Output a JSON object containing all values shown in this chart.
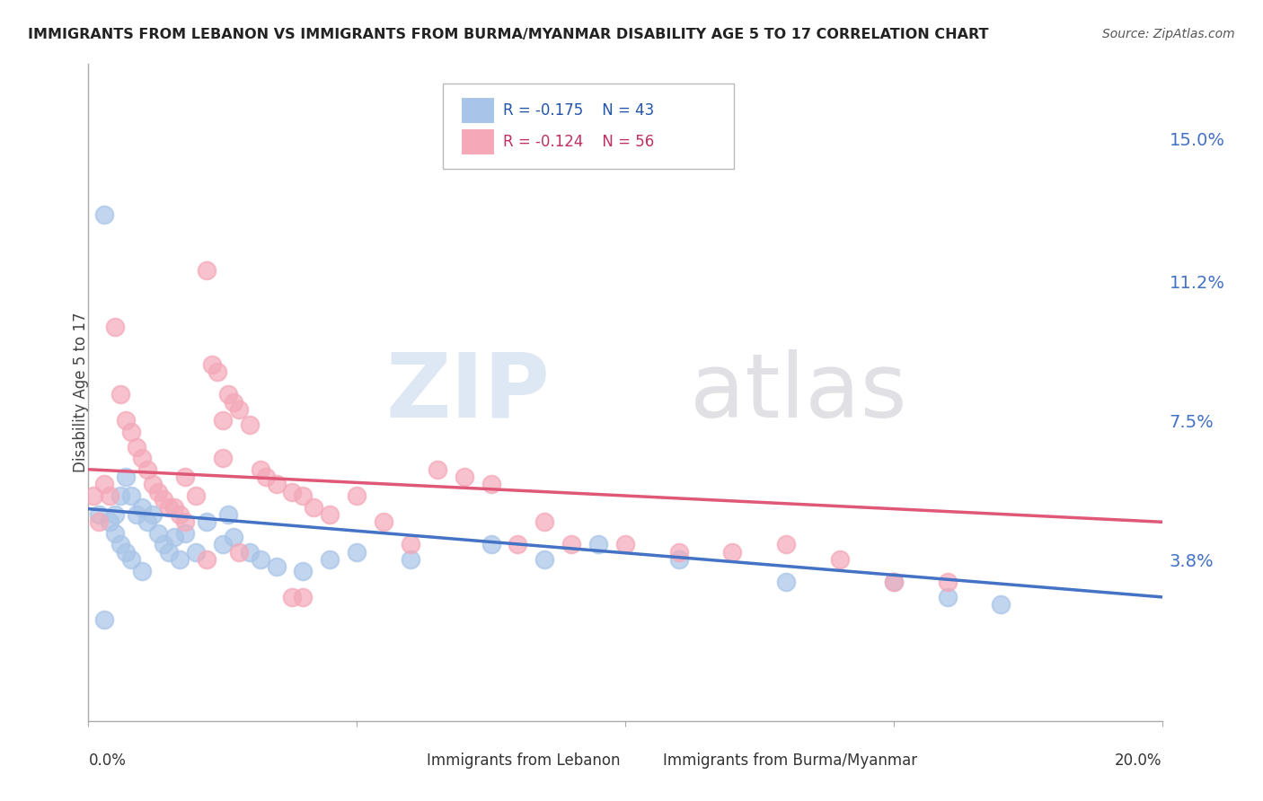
{
  "title": "IMMIGRANTS FROM LEBANON VS IMMIGRANTS FROM BURMA/MYANMAR DISABILITY AGE 5 TO 17 CORRELATION CHART",
  "source": "Source: ZipAtlas.com",
  "ylabel": "Disability Age 5 to 17",
  "ytick_labels": [
    "3.8%",
    "7.5%",
    "11.2%",
    "15.0%"
  ],
  "ytick_values": [
    0.038,
    0.075,
    0.112,
    0.15
  ],
  "xlim": [
    0.0,
    0.2
  ],
  "ylim": [
    -0.005,
    0.17
  ],
  "color_lebanon": "#a8c4e8",
  "color_burma": "#f4a8b8",
  "line_color_lebanon": "#4472c4",
  "line_color_burma": "#e05878",
  "lebanon_x": [
    0.002,
    0.003,
    0.004,
    0.005,
    0.005,
    0.006,
    0.006,
    0.007,
    0.007,
    0.008,
    0.008,
    0.009,
    0.01,
    0.01,
    0.011,
    0.012,
    0.013,
    0.014,
    0.015,
    0.016,
    0.017,
    0.018,
    0.02,
    0.022,
    0.025,
    0.026,
    0.027,
    0.03,
    0.032,
    0.035,
    0.04,
    0.045,
    0.05,
    0.06,
    0.075,
    0.085,
    0.095,
    0.11,
    0.13,
    0.15,
    0.16,
    0.17,
    0.003
  ],
  "lebanon_y": [
    0.05,
    0.13,
    0.048,
    0.05,
    0.045,
    0.055,
    0.042,
    0.06,
    0.04,
    0.055,
    0.038,
    0.05,
    0.052,
    0.035,
    0.048,
    0.05,
    0.045,
    0.042,
    0.04,
    0.044,
    0.038,
    0.045,
    0.04,
    0.048,
    0.042,
    0.05,
    0.044,
    0.04,
    0.038,
    0.036,
    0.035,
    0.038,
    0.04,
    0.038,
    0.042,
    0.038,
    0.042,
    0.038,
    0.032,
    0.032,
    0.028,
    0.026,
    0.022
  ],
  "burma_x": [
    0.001,
    0.002,
    0.003,
    0.004,
    0.005,
    0.006,
    0.007,
    0.008,
    0.009,
    0.01,
    0.011,
    0.012,
    0.013,
    0.014,
    0.015,
    0.016,
    0.017,
    0.018,
    0.018,
    0.02,
    0.022,
    0.023,
    0.024,
    0.025,
    0.025,
    0.026,
    0.027,
    0.028,
    0.03,
    0.032,
    0.033,
    0.035,
    0.038,
    0.04,
    0.042,
    0.045,
    0.05,
    0.055,
    0.06,
    0.065,
    0.07,
    0.075,
    0.08,
    0.085,
    0.09,
    0.1,
    0.11,
    0.12,
    0.13,
    0.14,
    0.15,
    0.16,
    0.022,
    0.028,
    0.038,
    0.04
  ],
  "burma_y": [
    0.055,
    0.048,
    0.058,
    0.055,
    0.1,
    0.082,
    0.075,
    0.072,
    0.068,
    0.065,
    0.062,
    0.058,
    0.056,
    0.054,
    0.052,
    0.052,
    0.05,
    0.06,
    0.048,
    0.055,
    0.115,
    0.09,
    0.088,
    0.075,
    0.065,
    0.082,
    0.08,
    0.078,
    0.074,
    0.062,
    0.06,
    0.058,
    0.056,
    0.055,
    0.052,
    0.05,
    0.055,
    0.048,
    0.042,
    0.062,
    0.06,
    0.058,
    0.042,
    0.048,
    0.042,
    0.042,
    0.04,
    0.04,
    0.042,
    0.038,
    0.032,
    0.032,
    0.038,
    0.04,
    0.028,
    0.028
  ],
  "leb_line_x0": 0.0,
  "leb_line_y0": 0.0515,
  "leb_line_x1": 0.2,
  "leb_line_y1": 0.028,
  "bur_line_x0": 0.0,
  "bur_line_y0": 0.062,
  "bur_line_x1": 0.2,
  "bur_line_y1": 0.048
}
